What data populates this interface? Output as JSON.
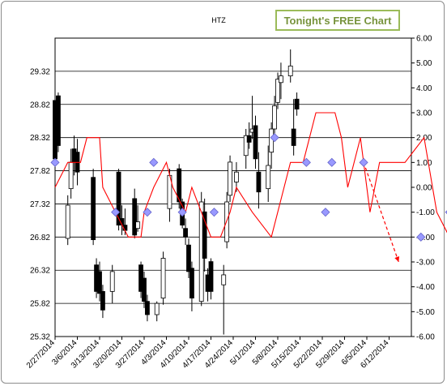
{
  "badge": "Tonight's FREE Chart",
  "chart_data": {
    "type": "candlestick",
    "title": "HTZ",
    "xlabel": "",
    "ylabel": "",
    "grid": true,
    "legend": "none",
    "x_ticks": [
      "2/27/2014",
      "3/6/2014",
      "3/13/2014",
      "3/20/2014",
      "3/27/2014",
      "4/3/2014",
      "4/10/2014",
      "4/17/2014",
      "4/24/2014",
      "5/1/2014",
      "5/8/2014",
      "5/15/2014",
      "5/22/2014",
      "5/29/2014",
      "6/5/2014",
      "6/12/2014"
    ],
    "y_left": {
      "ticks": [
        "25.32",
        "25.82",
        "26.32",
        "26.82",
        "27.32",
        "27.82",
        "28.32",
        "28.82",
        "29.32"
      ],
      "range": [
        25.32,
        29.82
      ]
    },
    "y_right": {
      "ticks": [
        "-6.00",
        "-5.00",
        "-4.00",
        "-3.00",
        "-2.00",
        "-1.00",
        "0.00",
        "1.00",
        "2.00",
        "3.00",
        "4.00",
        "5.00",
        "6.00"
      ],
      "range": [
        -6,
        6
      ]
    },
    "colors": {
      "up_fill": "#ffffff",
      "down_fill": "#000000",
      "line": "#ff0000",
      "marker": "#9999ff",
      "marker_edge": "#6666cc"
    },
    "candles": [
      {
        "date": "2/27/2014",
        "open": 28.88,
        "high": 29.0,
        "low": 27.85,
        "close": 28.0
      },
      {
        "date": "2/28/2014",
        "open": 28.95,
        "high": 29.0,
        "low": 28.1,
        "close": 28.2
      },
      {
        "date": "3/3/2014",
        "open": 26.8,
        "high": 27.45,
        "low": 26.7,
        "close": 27.3
      },
      {
        "date": "3/4/2014",
        "open": 27.55,
        "high": 28.15,
        "low": 27.4,
        "close": 27.95
      },
      {
        "date": "3/5/2014",
        "open": 28.15,
        "high": 28.35,
        "low": 27.75,
        "close": 27.95
      },
      {
        "date": "3/6/2014",
        "open": 28.1,
        "high": 28.3,
        "low": 27.6,
        "close": 27.8
      },
      {
        "date": "3/11/2014",
        "open": 27.72,
        "high": 27.85,
        "low": 26.7,
        "close": 26.78
      },
      {
        "date": "3/12/2014",
        "open": 26.4,
        "high": 26.5,
        "low": 25.9,
        "close": 26.0
      },
      {
        "date": "3/13/2014",
        "open": 26.3,
        "high": 26.45,
        "low": 25.85,
        "close": 25.97
      },
      {
        "date": "3/14/2014",
        "open": 26.0,
        "high": 26.1,
        "low": 25.6,
        "close": 25.72
      },
      {
        "date": "3/17/2014",
        "open": 26.0,
        "high": 26.4,
        "low": 25.82,
        "close": 26.3
      },
      {
        "date": "3/19/2014",
        "open": 27.8,
        "high": 27.85,
        "low": 26.92,
        "close": 27.0
      },
      {
        "date": "3/20/2014",
        "open": 27.1,
        "high": 27.3,
        "low": 26.85,
        "close": 27.0
      },
      {
        "date": "3/21/2014",
        "open": 27.0,
        "high": 27.25,
        "low": 26.85,
        "close": 26.92
      },
      {
        "date": "3/24/2014",
        "open": 27.4,
        "high": 27.55,
        "low": 26.8,
        "close": 26.85
      },
      {
        "date": "3/25/2014",
        "open": 26.95,
        "high": 27.3,
        "low": 26.9,
        "close": 27.05
      },
      {
        "date": "3/26/2014",
        "open": 26.4,
        "high": 26.45,
        "low": 25.9,
        "close": 26.0
      },
      {
        "date": "3/27/2014",
        "open": 26.2,
        "high": 26.3,
        "low": 25.75,
        "close": 25.85
      },
      {
        "date": "3/28/2014",
        "open": 25.85,
        "high": 25.95,
        "low": 25.55,
        "close": 25.65
      },
      {
        "date": "3/31/2014",
        "open": 25.65,
        "high": 25.85,
        "low": 25.55,
        "close": 25.82
      },
      {
        "date": "4/2/2014",
        "open": 25.9,
        "high": 26.6,
        "low": 25.8,
        "close": 26.5
      },
      {
        "date": "4/4/2014",
        "open": 27.25,
        "high": 27.85,
        "low": 27.05,
        "close": 27.75
      },
      {
        "date": "4/7/2014",
        "open": 27.85,
        "high": 27.92,
        "low": 27.25,
        "close": 27.35
      },
      {
        "date": "4/8/2014",
        "open": 27.35,
        "high": 27.4,
        "low": 26.95,
        "close": 27.0
      },
      {
        "date": "4/9/2014",
        "open": 26.95,
        "high": 27.1,
        "low": 26.7,
        "close": 26.82
      },
      {
        "date": "4/10/2014",
        "open": 26.7,
        "high": 26.8,
        "low": 26.2,
        "close": 26.3
      },
      {
        "date": "4/11/2014",
        "open": 26.35,
        "high": 26.45,
        "low": 25.7,
        "close": 25.9
      },
      {
        "date": "4/14/2014",
        "open": 25.85,
        "high": 27.5,
        "low": 25.78,
        "close": 27.35
      },
      {
        "date": "4/15/2014",
        "open": 27.2,
        "high": 27.4,
        "low": 26.3,
        "close": 26.5
      },
      {
        "date": "4/16/2014",
        "open": 26.25,
        "high": 26.35,
        "low": 25.85,
        "close": 26.0
      },
      {
        "date": "4/17/2014",
        "open": 26.45,
        "high": 26.5,
        "low": 25.88,
        "close": 26.0
      },
      {
        "date": "4/21/2014",
        "open": 26.1,
        "high": 26.4,
        "low": 25.35,
        "close": 26.25
      },
      {
        "date": "4/22/2014",
        "open": 26.75,
        "high": 27.5,
        "low": 26.65,
        "close": 27.35
      },
      {
        "date": "4/23/2014",
        "open": 27.45,
        "high": 28.05,
        "low": 27.35,
        "close": 27.95
      },
      {
        "date": "4/25/2014",
        "open": 27.65,
        "high": 27.95,
        "low": 27.5,
        "close": 27.8
      },
      {
        "date": "4/28/2014",
        "open": 28.05,
        "high": 28.45,
        "low": 27.85,
        "close": 28.35
      },
      {
        "date": "4/29/2014",
        "open": 28.35,
        "high": 28.55,
        "low": 28.15,
        "close": 28.25
      },
      {
        "date": "4/30/2014",
        "open": 28.4,
        "high": 28.95,
        "low": 28.3,
        "close": 28.45
      },
      {
        "date": "5/1/2014",
        "open": 28.5,
        "high": 28.65,
        "low": 27.85,
        "close": 28.0
      },
      {
        "date": "5/2/2014",
        "open": 27.8,
        "high": 28.1,
        "low": 27.25,
        "close": 27.5
      },
      {
        "date": "5/5/2014",
        "open": 27.55,
        "high": 28.2,
        "low": 27.35,
        "close": 27.9
      },
      {
        "date": "5/6/2014",
        "open": 28.1,
        "high": 28.55,
        "low": 27.85,
        "close": 28.45
      },
      {
        "date": "5/7/2014",
        "open": 28.45,
        "high": 28.95,
        "low": 28.3,
        "close": 28.8
      },
      {
        "date": "5/8/2014",
        "open": 28.85,
        "high": 29.3,
        "low": 28.75,
        "close": 29.2
      },
      {
        "date": "5/9/2014",
        "open": 29.15,
        "high": 29.45,
        "low": 28.9,
        "close": 29.25
      },
      {
        "date": "5/12/2014",
        "open": 29.25,
        "high": 29.65,
        "low": 29.15,
        "close": 29.4
      },
      {
        "date": "5/13/2014",
        "open": 28.45,
        "high": 28.9,
        "low": 28.05,
        "close": 28.2
      },
      {
        "date": "5/14/2014",
        "open": 28.9,
        "high": 29.0,
        "low": 28.65,
        "close": 28.75
      }
    ],
    "red_line": [
      [
        0,
        0
      ],
      [
        4,
        1
      ],
      [
        8,
        1
      ],
      [
        10,
        2
      ],
      [
        14,
        2
      ],
      [
        15,
        0
      ],
      [
        19,
        -1
      ],
      [
        23,
        -2
      ],
      [
        27,
        -2
      ],
      [
        28,
        -1
      ],
      [
        31,
        0
      ],
      [
        35,
        1
      ],
      [
        37,
        0
      ],
      [
        41,
        -1
      ],
      [
        43,
        0
      ],
      [
        46,
        -1
      ],
      [
        49,
        -2
      ],
      [
        52,
        -2
      ],
      [
        55,
        -1
      ],
      [
        57,
        0
      ],
      [
        62,
        -1
      ],
      [
        68,
        -2
      ],
      [
        74,
        1
      ],
      [
        78,
        1
      ],
      [
        82,
        3
      ],
      [
        88,
        3
      ],
      [
        90,
        2
      ],
      [
        92,
        0
      ],
      [
        94,
        1
      ],
      [
        96,
        2
      ],
      [
        99,
        -1
      ],
      [
        102,
        1
      ],
      [
        106,
        1
      ],
      [
        110,
        1
      ],
      [
        116,
        2
      ],
      [
        120,
        -1
      ],
      [
        124,
        -2
      ],
      [
        130,
        -2
      ],
      [
        134,
        -3
      ],
      [
        138,
        -3
      ],
      [
        140,
        -1
      ],
      [
        148,
        -1
      ],
      [
        150,
        0
      ],
      [
        162,
        0
      ],
      [
        166,
        -1
      ],
      [
        168,
        0
      ],
      [
        170,
        1
      ],
      [
        174,
        1
      ],
      [
        178,
        2
      ],
      [
        180,
        0
      ]
    ],
    "markers": [
      [
        0,
        1
      ],
      [
        19,
        -1
      ],
      [
        29,
        -1
      ],
      [
        31,
        1
      ],
      [
        40,
        -1
      ],
      [
        50,
        -1
      ],
      [
        69,
        2
      ],
      [
        79,
        1
      ],
      [
        85,
        -1
      ],
      [
        87,
        1
      ],
      [
        97,
        1
      ],
      [
        115,
        -2
      ],
      [
        124,
        -1
      ],
      [
        129,
        0
      ],
      [
        164,
        -1
      ],
      [
        169,
        1
      ],
      [
        172,
        1
      ]
    ],
    "projection_arrow": {
      "from": [
        97,
        1
      ],
      "to": [
        108,
        -3
      ]
    }
  }
}
